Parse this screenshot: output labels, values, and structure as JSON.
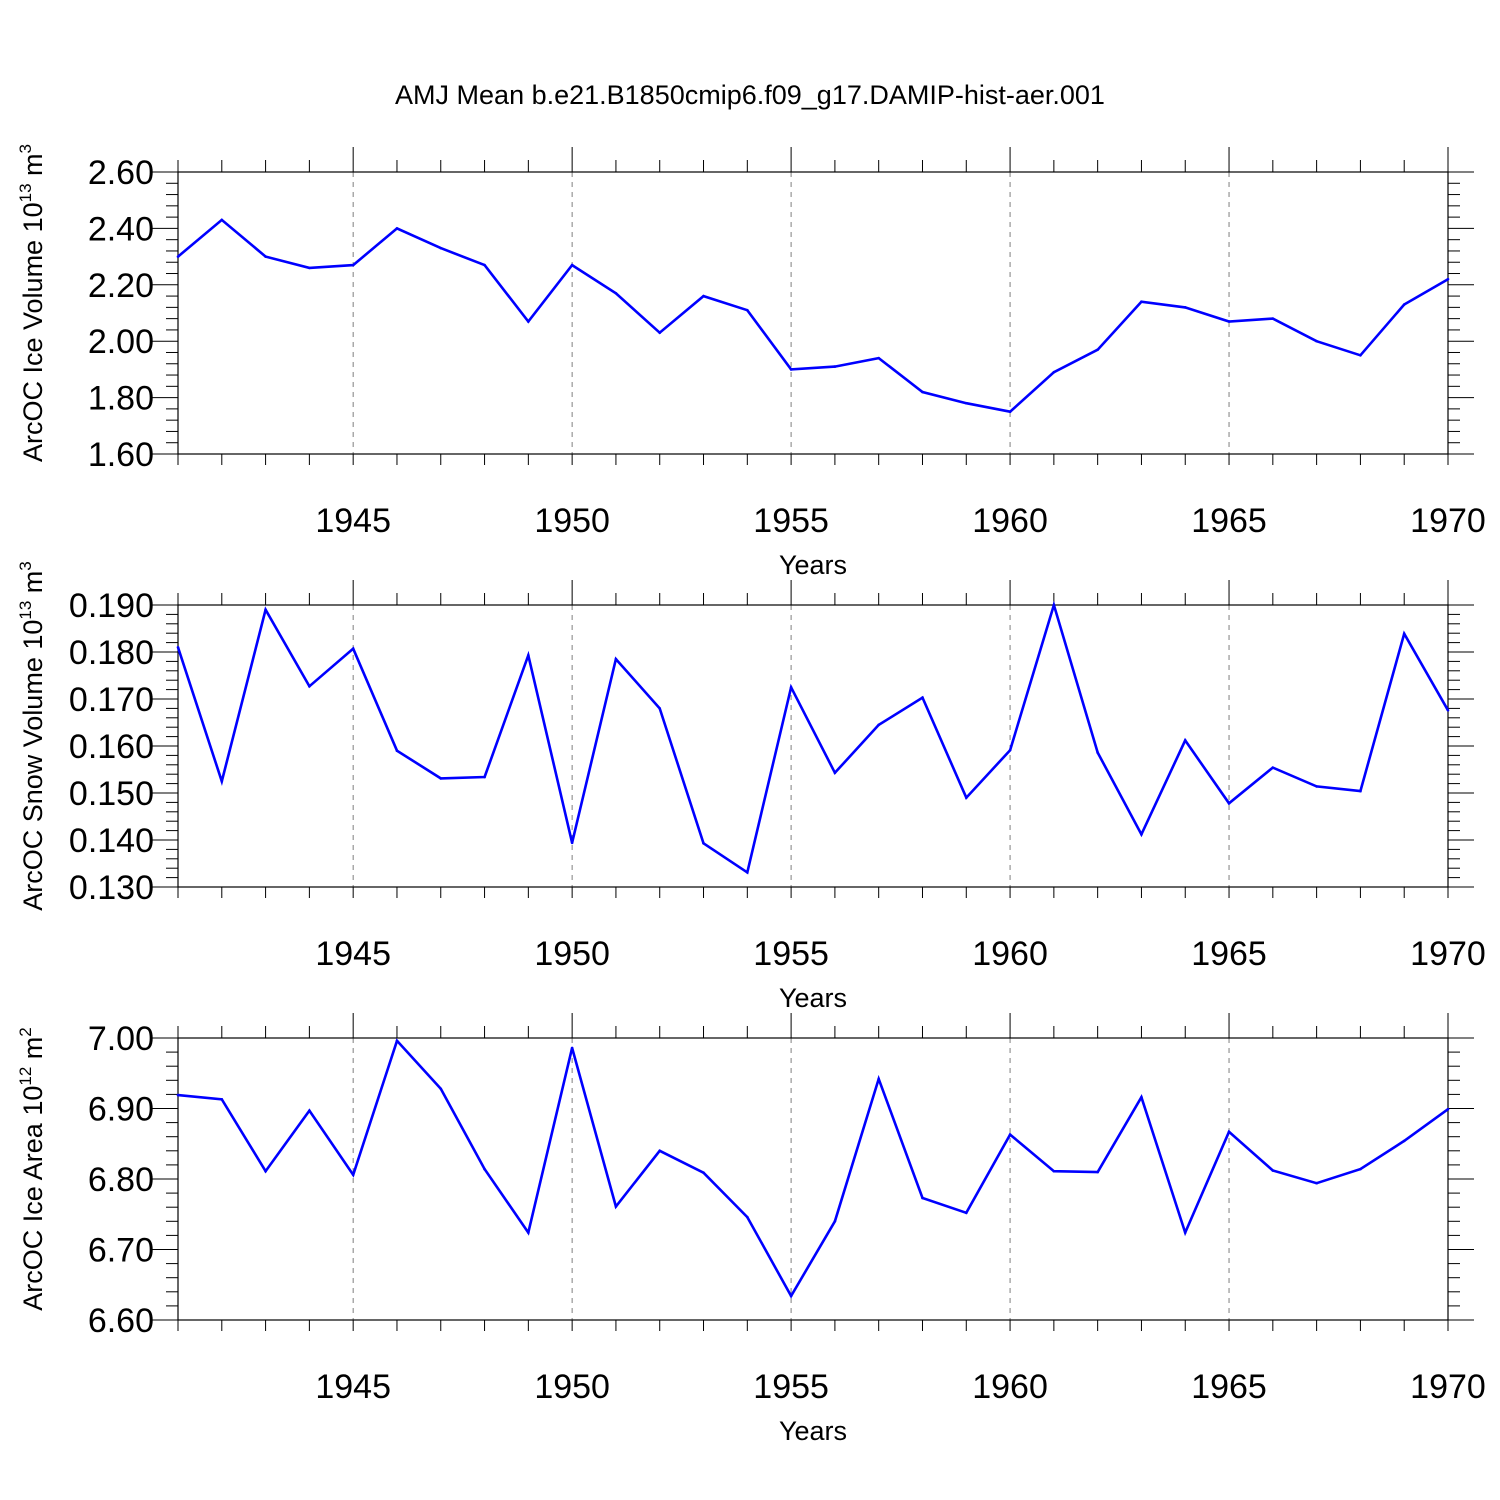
{
  "title": "AMJ Mean b.e21.B1850cmip6.f09_g17.DAMIP-hist-aer.001",
  "colors": {
    "line": "#0000ff",
    "axis": "#000000",
    "grid": "#7f7f7f",
    "background": "#ffffff"
  },
  "chart_data": [
    {
      "type": "line",
      "name": "ice-volume",
      "ylabel_main": "ArcOC Ice Volume 10",
      "ylabel_sup": "13",
      "ylabel_unit": " m",
      "ylabel_unit_sup": "3",
      "xlabel": "Years",
      "xlim": [
        1941,
        1970
      ],
      "ylim": [
        1.6,
        2.6
      ],
      "yticks": [
        "1.60",
        "1.80",
        "2.00",
        "2.20",
        "2.40",
        "2.60"
      ],
      "ytick_values": [
        1.6,
        1.8,
        2.0,
        2.2,
        2.4,
        2.6
      ],
      "xticks": [
        "1945",
        "1950",
        "1955",
        "1960",
        "1965",
        "1970"
      ],
      "xtick_values": [
        1945,
        1950,
        1955,
        1960,
        1965,
        1970
      ],
      "vertical_grid": [
        1945,
        1950,
        1955,
        1960,
        1965
      ],
      "x": [
        1941,
        1942,
        1943,
        1944,
        1945,
        1946,
        1947,
        1948,
        1949,
        1950,
        1951,
        1952,
        1953,
        1954,
        1955,
        1956,
        1957,
        1958,
        1959,
        1960,
        1961,
        1962,
        1963,
        1964,
        1965,
        1966,
        1967,
        1968,
        1969,
        1970
      ],
      "values": [
        2.3,
        2.43,
        2.3,
        2.26,
        2.27,
        2.4,
        2.33,
        2.27,
        2.07,
        2.27,
        2.17,
        2.03,
        2.16,
        2.11,
        1.9,
        1.91,
        1.94,
        1.82,
        1.78,
        1.75,
        1.89,
        1.97,
        2.14,
        2.12,
        2.07,
        2.08,
        2.0,
        1.95,
        2.13,
        2.22
      ]
    },
    {
      "type": "line",
      "name": "snow-volume",
      "ylabel_main": "ArcOC Snow Volume 10",
      "ylabel_sup": "13",
      "ylabel_unit": " m",
      "ylabel_unit_sup": "3",
      "xlabel": "Years",
      "xlim": [
        1941,
        1970
      ],
      "ylim": [
        0.13,
        0.19
      ],
      "yticks": [
        "0.130",
        "0.140",
        "0.150",
        "0.160",
        "0.170",
        "0.180",
        "0.190"
      ],
      "ytick_values": [
        0.13,
        0.14,
        0.15,
        0.16,
        0.17,
        0.18,
        0.19
      ],
      "xticks": [
        "1945",
        "1950",
        "1955",
        "1960",
        "1965",
        "1970"
      ],
      "xtick_values": [
        1945,
        1950,
        1955,
        1960,
        1965,
        1970
      ],
      "vertical_grid": [
        1945,
        1950,
        1955,
        1960,
        1965
      ],
      "x": [
        1941,
        1942,
        1943,
        1944,
        1945,
        1946,
        1947,
        1948,
        1949,
        1950,
        1951,
        1952,
        1953,
        1954,
        1955,
        1956,
        1957,
        1958,
        1959,
        1960,
        1961,
        1962,
        1963,
        1964,
        1965,
        1966,
        1967,
        1968,
        1969,
        1970
      ],
      "values": [
        0.181,
        0.1525,
        0.189,
        0.1727,
        0.1807,
        0.159,
        0.1531,
        0.1534,
        0.1793,
        0.1394,
        0.1785,
        0.168,
        0.1393,
        0.1331,
        0.1725,
        0.1543,
        0.1645,
        0.1703,
        0.149,
        0.1591,
        0.19,
        0.1586,
        0.1412,
        0.1612,
        0.1478,
        0.1554,
        0.1514,
        0.1504,
        0.1839,
        0.1676
      ]
    },
    {
      "type": "line",
      "name": "ice-area",
      "ylabel_main": "ArcOC Ice Area 10",
      "ylabel_sup": "12",
      "ylabel_unit": " m",
      "ylabel_unit_sup": "2",
      "xlabel": "Years",
      "xlim": [
        1941,
        1970
      ],
      "ylim": [
        6.6,
        7.0
      ],
      "yticks": [
        "6.60",
        "6.70",
        "6.80",
        "6.90",
        "7.00"
      ],
      "ytick_values": [
        6.6,
        6.7,
        6.8,
        6.9,
        7.0
      ],
      "xticks": [
        "1945",
        "1950",
        "1955",
        "1960",
        "1965",
        "1970"
      ],
      "xtick_values": [
        1945,
        1950,
        1955,
        1960,
        1965,
        1970
      ],
      "vertical_grid": [
        1945,
        1950,
        1955,
        1960,
        1965
      ],
      "x": [
        1941,
        1942,
        1943,
        1944,
        1945,
        1946,
        1947,
        1948,
        1949,
        1950,
        1951,
        1952,
        1953,
        1954,
        1955,
        1956,
        1957,
        1958,
        1959,
        1960,
        1961,
        1962,
        1963,
        1964,
        1965,
        1966,
        1967,
        1968,
        1969,
        1970
      ],
      "values": [
        6.919,
        6.913,
        6.811,
        6.897,
        6.806,
        6.996,
        6.928,
        6.814,
        6.724,
        6.986,
        6.761,
        6.84,
        6.809,
        6.746,
        6.634,
        6.74,
        6.942,
        6.773,
        6.752,
        6.863,
        6.811,
        6.81,
        6.916,
        6.724,
        6.867,
        6.812,
        6.794,
        6.814,
        6.854,
        6.899
      ]
    }
  ]
}
